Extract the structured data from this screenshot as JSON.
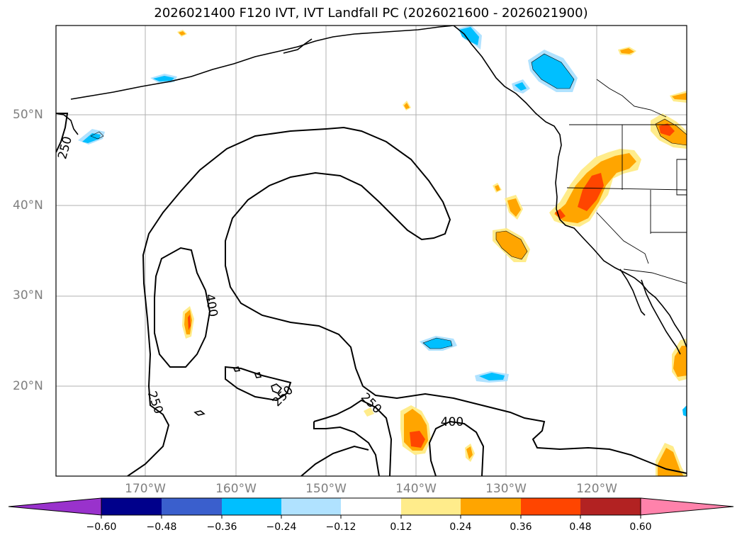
{
  "title": "2026021400 F120 IVT, IVT Landfall PC (2026021600 - 2026021900)",
  "map": {
    "lat_labels": [
      "50°N",
      "40°N",
      "30°N",
      "20°N"
    ],
    "lon_labels": [
      "170°W",
      "160°W",
      "150°W",
      "140°W",
      "130°W",
      "120°W"
    ],
    "contour_labels": [
      "250",
      "400",
      "250",
      "250",
      "250",
      "400"
    ],
    "colors": {
      "neg_060": "#9932cc",
      "neg_048": "#00008b",
      "neg_036": "#3a5fcd",
      "neg_024": "#00bfff",
      "neg_012": "#b0e2ff",
      "neutral": "#ffffff",
      "pos_012": "#ffec8b",
      "pos_024": "#ffa500",
      "pos_036": "#ff4500",
      "pos_048": "#b22222",
      "pos_060": "#ff82ab"
    }
  },
  "colorbar": {
    "ticks": [
      "−0.60",
      "−0.48",
      "−0.36",
      "−0.24",
      "−0.12",
      "0.12",
      "0.24",
      "0.36",
      "0.48",
      "0.60"
    ]
  }
}
